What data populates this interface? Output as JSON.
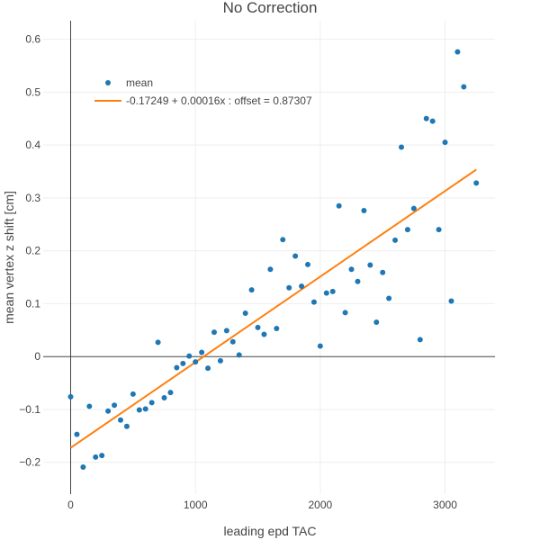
{
  "chart_data": {
    "type": "scatter",
    "title": "No Correction",
    "xlabel": "leading epd TAC",
    "ylabel": "mean vertex z shift [cm]",
    "xlim": [
      -220,
      3400
    ],
    "ylim": [
      -0.26,
      0.635
    ],
    "xticks": [
      0,
      1000,
      2000,
      3000
    ],
    "yticks": [
      -0.2,
      -0.1,
      0,
      0.1,
      0.2,
      0.3,
      0.4,
      0.5,
      0.6
    ],
    "grid": true,
    "legend_position": "top-left",
    "colors": {
      "points": "#1f77b4",
      "fit": "#ff7f0e",
      "zeroline": "#444444",
      "grid": "#eeeeee"
    },
    "series": [
      {
        "name": "mean",
        "kind": "scatter",
        "x": [
          0,
          50,
          100,
          150,
          200,
          250,
          300,
          350,
          400,
          450,
          500,
          550,
          600,
          650,
          700,
          750,
          800,
          850,
          900,
          950,
          1000,
          1050,
          1100,
          1150,
          1200,
          1250,
          1300,
          1350,
          1400,
          1450,
          1500,
          1550,
          1600,
          1650,
          1700,
          1750,
          1800,
          1850,
          1900,
          1950,
          2000,
          2050,
          2100,
          2150,
          2200,
          2250,
          2300,
          2350,
          2400,
          2450,
          2500,
          2550,
          2600,
          2650,
          2700,
          2750,
          2800,
          2850,
          2900,
          2950,
          3000,
          3050,
          3100,
          3150,
          3250
        ],
        "y": [
          -0.076,
          -0.147,
          -0.209,
          -0.094,
          -0.19,
          -0.187,
          -0.103,
          -0.092,
          -0.12,
          -0.132,
          -0.071,
          -0.101,
          -0.099,
          -0.087,
          0.027,
          -0.078,
          -0.068,
          -0.021,
          -0.013,
          0.001,
          -0.01,
          0.008,
          -0.022,
          0.046,
          -0.008,
          0.049,
          0.028,
          0.003,
          0.082,
          0.126,
          0.055,
          0.042,
          0.165,
          0.053,
          0.221,
          0.13,
          0.19,
          0.133,
          0.174,
          0.103,
          0.02,
          0.12,
          0.123,
          0.285,
          0.083,
          0.165,
          0.142,
          0.276,
          0.173,
          0.065,
          0.159,
          0.11,
          0.22,
          0.396,
          0.24,
          0.28,
          0.032,
          0.45,
          0.445,
          0.24,
          0.405,
          0.105,
          0.576,
          0.51,
          0.328
        ]
      },
      {
        "name": "-0.17249 + 0.00016x : offset = 0.87307",
        "kind": "line",
        "x": [
          0,
          3250
        ],
        "y": [
          -0.17249,
          0.35351
        ]
      }
    ]
  }
}
